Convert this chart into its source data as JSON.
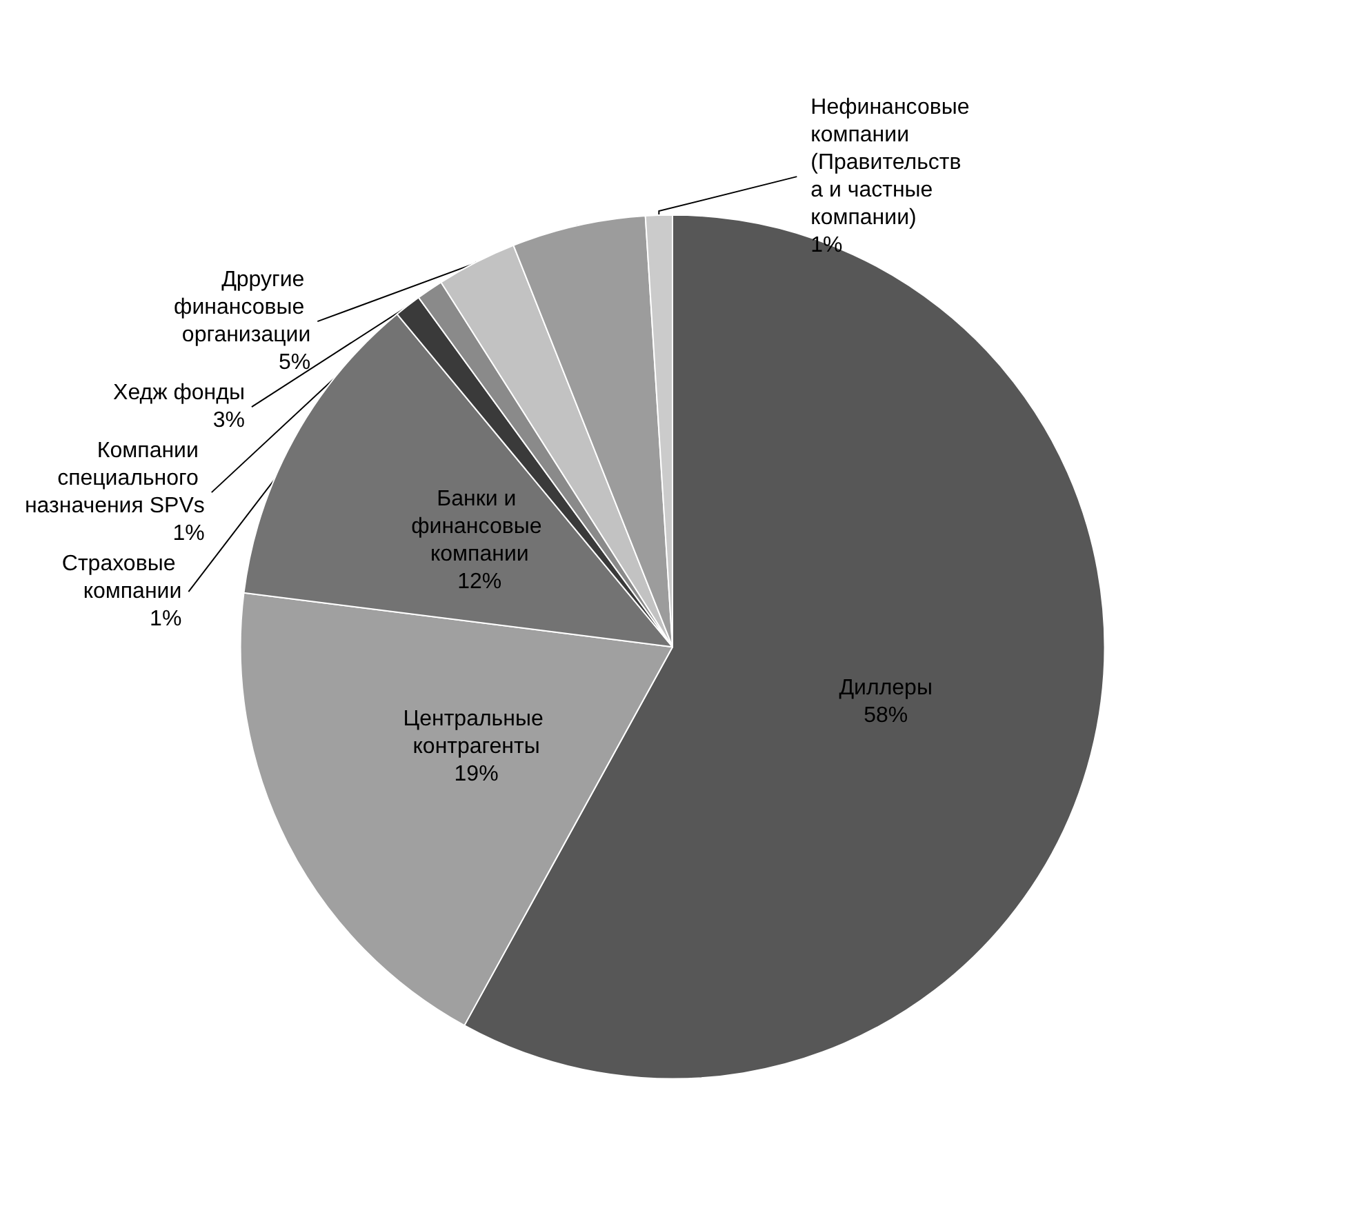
{
  "chart_data": {
    "type": "pie",
    "categories": [
      "Диллеры",
      "Центральные контрагенты",
      "Банки и финансовые компании",
      "Страховые компании",
      "Компании специального назначения SPVs",
      "Хедж фонды",
      "Дрругие финансовые организации",
      "Нефинансовые компании (Правительства и частные компании)"
    ],
    "values": [
      58,
      19,
      12,
      1,
      1,
      3,
      5,
      1
    ],
    "value_labels": [
      "58%",
      "19%",
      "12%",
      "1%",
      "1%",
      "3%",
      "5%",
      "1%"
    ],
    "colors": [
      "#575757",
      "#a0a0a0",
      "#737373",
      "#3a3a3a",
      "#8a8a8a",
      "#c2c2c2",
      "#9c9c9c",
      "#cbcbcb"
    ],
    "legend": false
  }
}
